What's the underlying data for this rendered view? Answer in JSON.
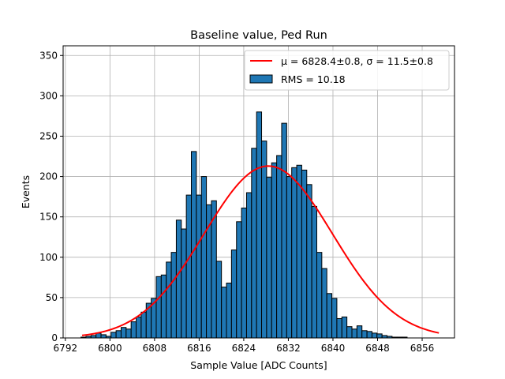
{
  "chart_data": {
    "type": "bar",
    "title": "Baseline value, Ped Run",
    "xlabel": "Sample Value [ADC Counts]",
    "ylabel": "Events",
    "xlim": [
      6791.6,
      6861.8
    ],
    "ylim": [
      0,
      362
    ],
    "grid": true,
    "legend_placement": "top-right",
    "xticks": [
      6792,
      6800,
      6808,
      6816,
      6824,
      6832,
      6840,
      6848,
      6856
    ],
    "yticks": [
      0,
      50,
      100,
      150,
      200,
      250,
      300,
      350
    ],
    "bin_width": 0.9,
    "bin_centers": [
      6795.25,
      6796.15,
      6797.05,
      6797.95,
      6798.85,
      6799.75,
      6800.65,
      6801.55,
      6802.45,
      6803.35,
      6804.25,
      6805.15,
      6806.05,
      6806.95,
      6807.85,
      6808.75,
      6809.65,
      6810.55,
      6811.45,
      6812.35,
      6813.25,
      6814.15,
      6815.05,
      6815.95,
      6816.85,
      6817.75,
      6818.65,
      6819.55,
      6820.45,
      6821.35,
      6822.25,
      6823.15,
      6824.05,
      6824.95,
      6825.85,
      6826.75,
      6827.65,
      6828.55,
      6829.45,
      6830.35,
      6831.25,
      6832.15,
      6833.05,
      6833.95,
      6834.85,
      6835.75,
      6836.65,
      6837.55,
      6838.45,
      6839.35,
      6840.25,
      6841.15,
      6842.05,
      6842.95,
      6843.85,
      6844.75,
      6845.65,
      6846.55,
      6847.45,
      6848.35,
      6849.25,
      6850.15,
      6851.05,
      6851.95,
      6852.85,
      6853.75,
      6854.65,
      6855.55,
      6856.45,
      6857.35
    ],
    "series": [
      {
        "name": "RMS = 10.18",
        "kind": "histogram",
        "color": "#1f77b4",
        "values": [
          1,
          2,
          3,
          6,
          4,
          2,
          7,
          9,
          13,
          11,
          20,
          26,
          32,
          43,
          49,
          76,
          78,
          94,
          106,
          146,
          135,
          177,
          231,
          177,
          200,
          165,
          170,
          95,
          63,
          68,
          109,
          144,
          161,
          180,
          235,
          280,
          244,
          199,
          217,
          226,
          266,
          200,
          211,
          214,
          208,
          190,
          163,
          106,
          86,
          55,
          49,
          24,
          26,
          14,
          11,
          15,
          9,
          8,
          6,
          5,
          3,
          2,
          1,
          1,
          1,
          0,
          0,
          0,
          0,
          0
        ]
      },
      {
        "name": "μ = 6828.4±0.8, σ = 11.5±0.8",
        "kind": "fit-curve",
        "color": "#ff0000",
        "mu": 6828.4,
        "sigma": 11.5,
        "amplitude": 213,
        "x_range": [
          6795,
          6859
        ]
      }
    ],
    "legend": [
      {
        "label": "μ = 6828.4±0.8, σ = 11.5±0.8",
        "marker": "line",
        "color": "#ff0000"
      },
      {
        "label": "RMS = 10.18",
        "marker": "patch",
        "color": "#1f77b4"
      }
    ]
  }
}
